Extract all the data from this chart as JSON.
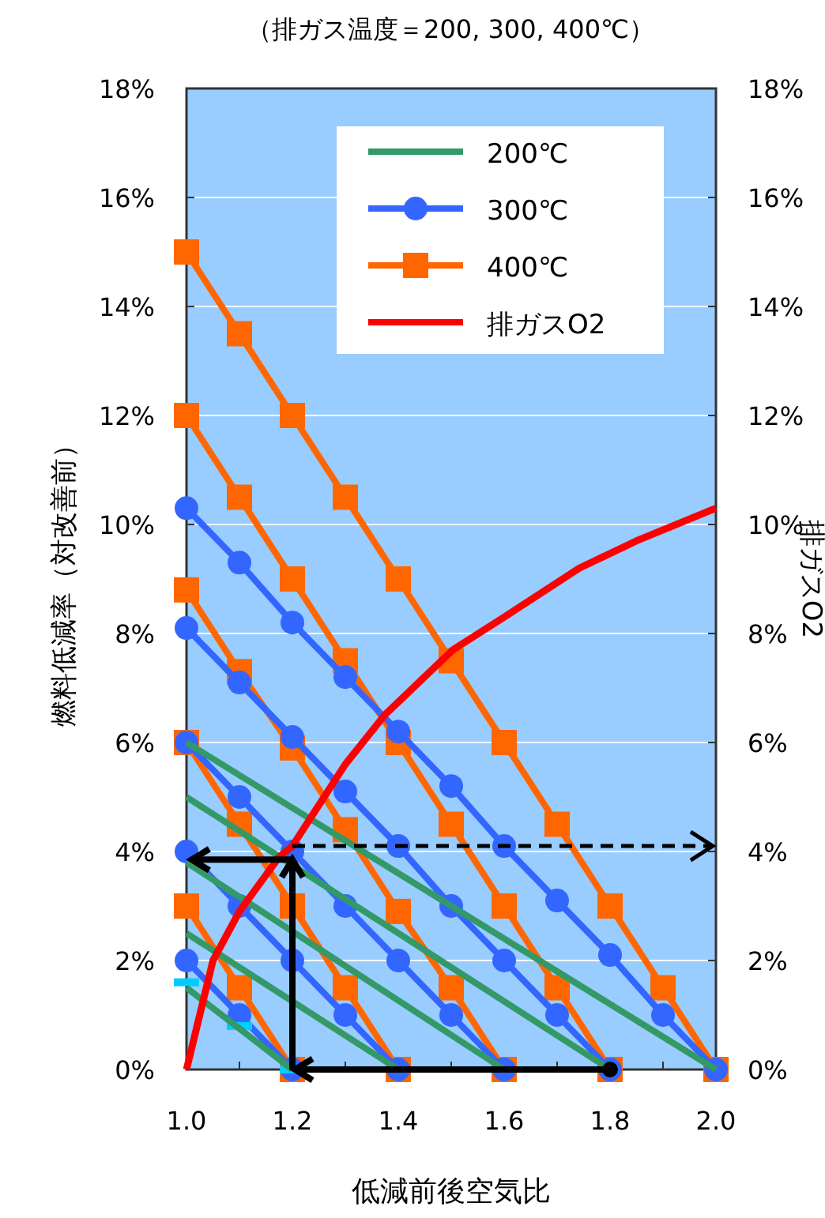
{
  "chart_data": {
    "type": "line",
    "title": "（排ガス温度＝200, 300, 400℃）",
    "xlabel": "低減前後空気比",
    "ylabel": "燃料低減率（対改善前）",
    "y2label": "排ガスO2",
    "xlim": [
      1.0,
      2.0
    ],
    "xticks": [
      {
        "value": 1.0,
        "label": "1.0"
      },
      {
        "value": 1.1,
        "label": null
      },
      {
        "value": 1.2,
        "label": "1.2"
      },
      {
        "value": 1.3,
        "label": null
      },
      {
        "value": 1.4,
        "label": "1.4"
      },
      {
        "value": 1.5,
        "label": null
      },
      {
        "value": 1.6,
        "label": "1.6"
      },
      {
        "value": 1.7,
        "label": null
      },
      {
        "value": 1.8,
        "label": "1.8"
      },
      {
        "value": 1.9,
        "label": null
      },
      {
        "value": 2.0,
        "label": "2.0"
      }
    ],
    "ylim": [
      0,
      18
    ],
    "yticks": [
      {
        "value": 0,
        "label": "0%"
      },
      {
        "value": 2,
        "label": "2%"
      },
      {
        "value": 4,
        "label": "4%"
      },
      {
        "value": 6,
        "label": "6%"
      },
      {
        "value": 8,
        "label": "8%"
      },
      {
        "value": 10,
        "label": "10%"
      },
      {
        "value": 12,
        "label": "12%"
      },
      {
        "value": 14,
        "label": "14%"
      },
      {
        "value": 16,
        "label": "16%"
      },
      {
        "value": 18,
        "label": "18%"
      }
    ],
    "y2lim": [
      0,
      18
    ],
    "y2ticks": [
      {
        "value": 0,
        "label": "0%"
      },
      {
        "value": 2,
        "label": "2%"
      },
      {
        "value": 4,
        "label": "4%"
      },
      {
        "value": 6,
        "label": "6%"
      },
      {
        "value": 8,
        "label": "8%"
      },
      {
        "value": 10,
        "label": "10%"
      },
      {
        "value": 12,
        "label": "12%"
      },
      {
        "value": 14,
        "label": "14%"
      },
      {
        "value": 16,
        "label": "16%"
      },
      {
        "value": 18,
        "label": "18%"
      }
    ],
    "grid": "y",
    "legend": "top right",
    "ref_lines": [
      {
        "axis": "y2",
        "value": 4.1,
        "color": "#000000",
        "line_style": "dashed"
      }
    ],
    "series": [
      {
        "name": "200℃",
        "color": "#339966",
        "marker": "none",
        "x": [
          1.0,
          2.0
        ],
        "values": [
          6.0,
          0
        ]
      },
      {
        "color": "#339966",
        "x": [
          1.0,
          1.8
        ],
        "values": [
          5.0,
          0
        ]
      },
      {
        "color": "#339966",
        "x": [
          1.0,
          1.6
        ],
        "values": [
          3.8,
          0
        ]
      },
      {
        "color": "#339966",
        "x": [
          1.0,
          1.4
        ],
        "values": [
          2.5,
          0
        ]
      },
      {
        "color": "#339966",
        "x": [
          1.0,
          1.2
        ],
        "values": [
          1.5,
          0
        ]
      },
      {
        "type": "scatter",
        "color": "#00ccff",
        "x": [
          1.0,
          1.1,
          1.2
        ],
        "values": [
          1.6,
          0.8,
          0
        ]
      },
      {
        "name": "300℃",
        "color": "#3366ff",
        "marker": "circle",
        "x": [
          1.0,
          1.1,
          1.2,
          1.3,
          1.4,
          1.5,
          1.6,
          1.7,
          1.8,
          1.9,
          2.0
        ],
        "values": [
          10.3,
          9.3,
          8.2,
          7.2,
          6.2,
          5.2,
          4.1,
          3.1,
          2.1,
          1.0,
          0
        ]
      },
      {
        "color": "#3366ff",
        "marker": "circle",
        "x": [
          1.0,
          1.1,
          1.2,
          1.3,
          1.4,
          1.5,
          1.6,
          1.7,
          1.8
        ],
        "values": [
          8.1,
          7.1,
          6.1,
          5.1,
          4.1,
          3.0,
          2.0,
          1.0,
          0
        ]
      },
      {
        "color": "#3366ff",
        "marker": "circle",
        "x": [
          1.0,
          1.1,
          1.2,
          1.3,
          1.4,
          1.5,
          1.6
        ],
        "values": [
          6.0,
          5.0,
          4.0,
          3.0,
          2.0,
          1.0,
          0
        ]
      },
      {
        "color": "#3366ff",
        "marker": "circle",
        "x": [
          1.0,
          1.1,
          1.2,
          1.3,
          1.4
        ],
        "values": [
          4.0,
          3.0,
          2.0,
          1.0,
          0
        ]
      },
      {
        "color": "#3366ff",
        "marker": "circle",
        "x": [
          1.0,
          1.1,
          1.2
        ],
        "values": [
          2.0,
          1.0,
          0
        ]
      },
      {
        "name": "400℃",
        "color": "#ff6600",
        "marker": "square",
        "x": [
          1.0,
          1.1,
          1.2,
          1.3,
          1.4,
          1.5,
          1.6,
          1.7,
          1.8,
          1.9,
          2.0
        ],
        "values": [
          15,
          13.5,
          12,
          10.5,
          9,
          7.5,
          6,
          4.5,
          3,
          1.5,
          0
        ]
      },
      {
        "color": "#ff6600",
        "marker": "square",
        "x": [
          1.0,
          1.1,
          1.2,
          1.3,
          1.4,
          1.5,
          1.6,
          1.7,
          1.8
        ],
        "values": [
          12,
          10.5,
          9,
          7.5,
          6,
          4.5,
          3,
          1.5,
          0
        ]
      },
      {
        "color": "#ff6600",
        "marker": "square",
        "x": [
          1.0,
          1.1,
          1.2,
          1.3,
          1.4,
          1.5,
          1.6
        ],
        "values": [
          8.8,
          7.3,
          5.9,
          4.4,
          2.9,
          1.5,
          0
        ]
      },
      {
        "color": "#ff6600",
        "marker": "square",
        "x": [
          1.0,
          1.1,
          1.2,
          1.3,
          1.4
        ],
        "values": [
          6.0,
          4.5,
          3.0,
          1.5,
          0
        ]
      },
      {
        "color": "#ff6600",
        "marker": "square",
        "x": [
          1.0,
          1.1,
          1.2
        ],
        "values": [
          3.0,
          1.5,
          0
        ]
      },
      {
        "name": "排ガスO2",
        "color": "#ff0000",
        "marker": "none",
        "axis": "y2",
        "x": [
          1.0,
          1.05,
          1.1,
          1.175,
          1.2,
          1.3,
          1.374,
          1.503,
          1.6,
          1.742,
          1.85,
          2.0
        ],
        "values": [
          0,
          2.0,
          2.9,
          3.9,
          4.1,
          5.6,
          6.5,
          7.7,
          8.3,
          9.2,
          9.7,
          10.3
        ]
      }
    ]
  }
}
